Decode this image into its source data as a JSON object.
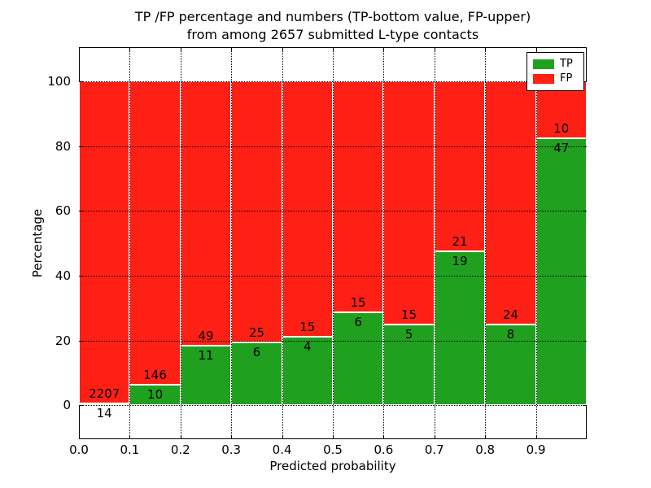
{
  "chart_data": {
    "type": "bar",
    "stacked": true,
    "normalized_to_percent": true,
    "title_line1": "TP /FP percentage and numbers (TP-bottom value, FP-upper)",
    "title_line2": "from among 2657 submitted L-type contacts",
    "xlabel": "Predicted probability",
    "ylabel": "Percentage",
    "x_ticks": [
      "0.0",
      "0.1",
      "0.2",
      "0.3",
      "0.4",
      "0.5",
      "0.6",
      "0.7",
      "0.8",
      "0.9"
    ],
    "y_ticks": [
      "0",
      "20",
      "40",
      "60",
      "80",
      "100"
    ],
    "xlim": [
      0.0,
      1.0
    ],
    "ylim": [
      -10.5,
      110.5
    ],
    "grid": true,
    "legend_position": "upper right",
    "total_contacts": 2657,
    "series": [
      {
        "name": "TP",
        "color": "#1fa11f"
      },
      {
        "name": "FP",
        "color": "#ff2015"
      }
    ],
    "bins": [
      {
        "range": [
          0.0,
          0.1
        ],
        "tp": 14,
        "fp": 2207
      },
      {
        "range": [
          0.1,
          0.2
        ],
        "tp": 10,
        "fp": 146
      },
      {
        "range": [
          0.2,
          0.3
        ],
        "tp": 11,
        "fp": 49
      },
      {
        "range": [
          0.3,
          0.4
        ],
        "tp": 6,
        "fp": 25
      },
      {
        "range": [
          0.4,
          0.5
        ],
        "tp": 4,
        "fp": 15
      },
      {
        "range": [
          0.5,
          0.6
        ],
        "tp": 6,
        "fp": 15
      },
      {
        "range": [
          0.6,
          0.7
        ],
        "tp": 5,
        "fp": 15
      },
      {
        "range": [
          0.7,
          0.8
        ],
        "tp": 19,
        "fp": 21
      },
      {
        "range": [
          0.8,
          0.9
        ],
        "tp": 8,
        "fp": 24
      },
      {
        "range": [
          0.9,
          1.0
        ],
        "tp": 47,
        "fp": 10
      }
    ]
  }
}
